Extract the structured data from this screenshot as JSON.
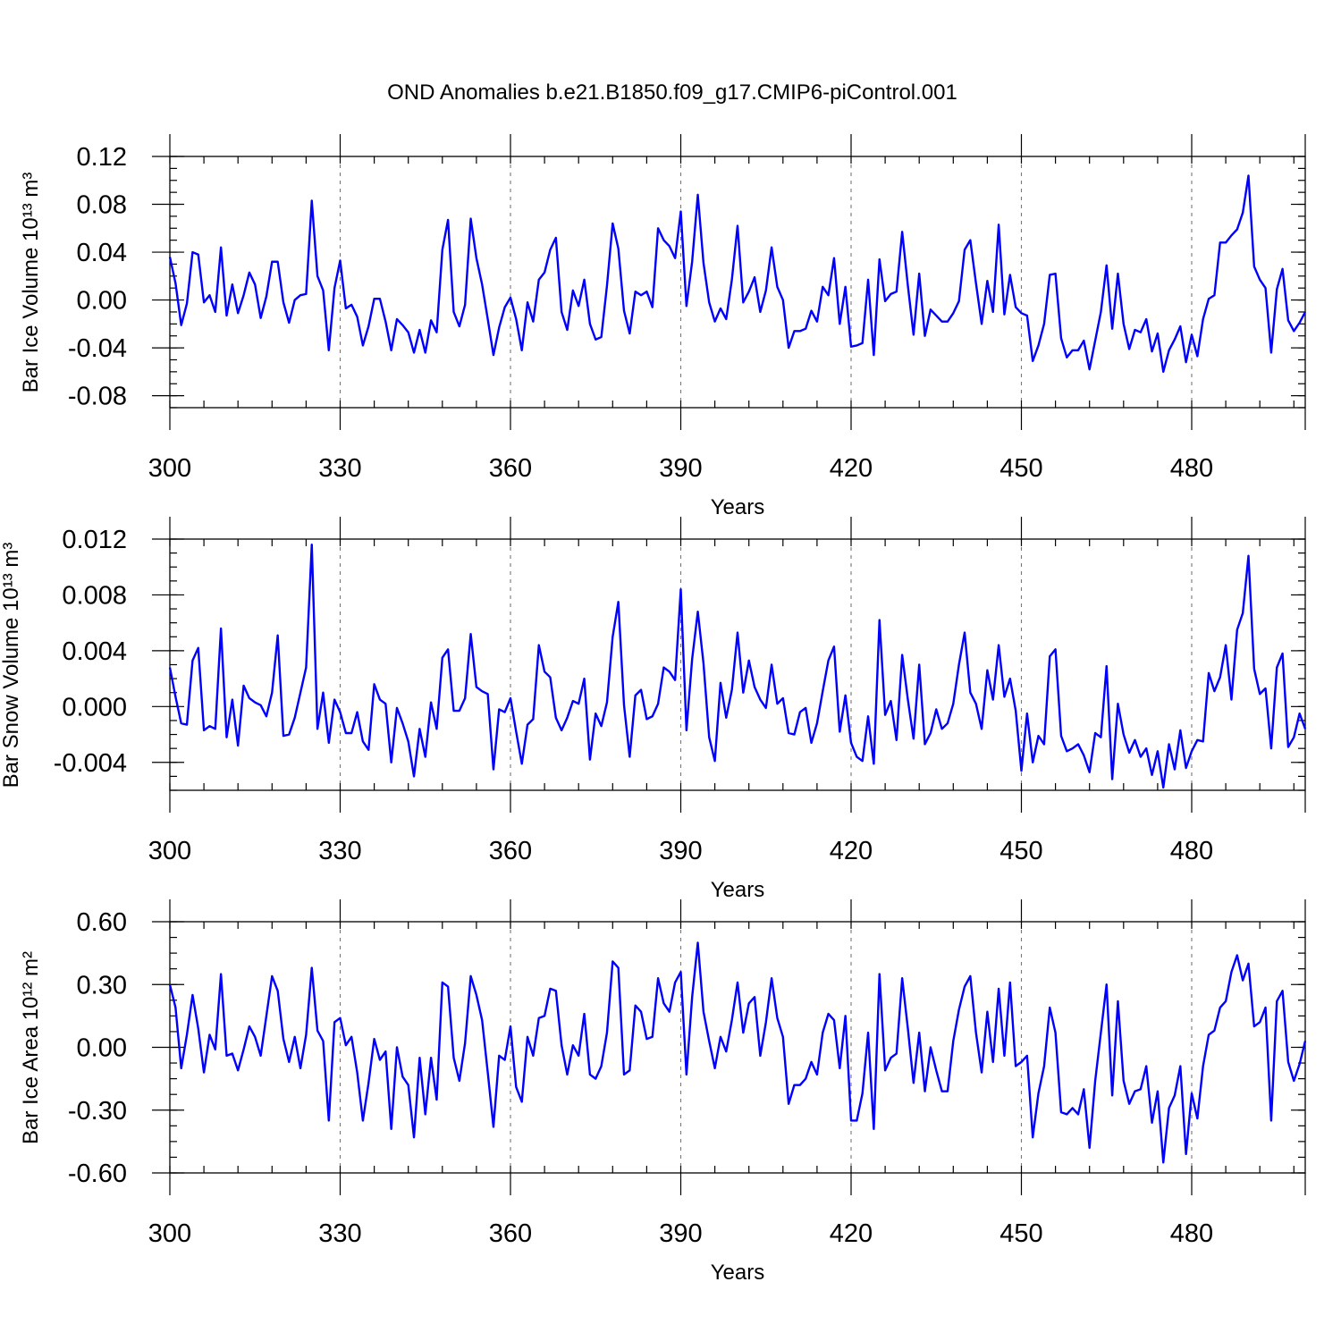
{
  "figure_title": "OND Anomalies b.e21.B1850.f09_g17.CMIP6-piControl.001",
  "chart_data": [
    {
      "type": "line",
      "title": "OND Anomalies b.e21.B1850.f09_g17.CMIP6-piControl.001",
      "xlabel": "Years",
      "ylabel": "Bar Ice Volume 10¹³ m³",
      "xlim": [
        300,
        500
      ],
      "ylim": [
        -0.09,
        0.12
      ],
      "xticks": [
        300,
        330,
        360,
        390,
        420,
        450,
        480
      ],
      "xtick_labels": [
        "300",
        "330",
        "360",
        "390",
        "420",
        "450",
        "480"
      ],
      "yticks": [
        -0.08,
        -0.04,
        0.0,
        0.04,
        0.08,
        0.12
      ],
      "ytick_labels": [
        "-0.08",
        "-0.04",
        "0.00",
        "0.04",
        "0.08",
        "0.12"
      ],
      "x_start": 300,
      "x_step": 1,
      "series": [
        {
          "name": "Bar Ice Volume",
          "color": "#0000ff",
          "values": [
            0.036,
            0.014,
            -0.021,
            -0.003,
            0.04,
            0.038,
            -0.002,
            0.004,
            -0.01,
            0.044,
            -0.013,
            0.013,
            -0.011,
            0.004,
            0.023,
            0.013,
            -0.015,
            0.003,
            0.032,
            0.032,
            -0.002,
            -0.019,
            0.0,
            0.004,
            0.005,
            0.083,
            0.02,
            0.008,
            -0.042,
            0.01,
            0.033,
            -0.007,
            -0.004,
            -0.014,
            -0.038,
            -0.022,
            0.001,
            0.001,
            -0.018,
            -0.042,
            -0.016,
            -0.021,
            -0.027,
            -0.044,
            -0.025,
            -0.044,
            -0.017,
            -0.027,
            0.042,
            0.067,
            -0.01,
            -0.022,
            -0.004,
            0.068,
            0.035,
            0.013,
            -0.016,
            -0.046,
            -0.023,
            -0.006,
            0.002,
            -0.016,
            -0.042,
            -0.002,
            -0.018,
            0.017,
            0.023,
            0.042,
            0.052,
            -0.01,
            -0.025,
            0.008,
            -0.005,
            0.017,
            -0.02,
            -0.033,
            -0.031,
            0.012,
            0.064,
            0.043,
            -0.009,
            -0.028,
            0.007,
            0.004,
            0.007,
            -0.006,
            0.06,
            0.05,
            0.045,
            0.035,
            0.074,
            -0.005,
            0.032,
            0.088,
            0.031,
            -0.002,
            -0.018,
            -0.007,
            -0.016,
            0.017,
            0.062,
            -0.002,
            0.007,
            0.019,
            -0.01,
            0.008,
            0.044,
            0.011,
            0.0,
            -0.04,
            -0.026,
            -0.026,
            -0.024,
            -0.009,
            -0.018,
            0.011,
            0.004,
            0.035,
            -0.02,
            0.011,
            -0.039,
            -0.038,
            -0.036,
            0.017,
            -0.046,
            0.034,
            -0.001,
            0.005,
            0.007,
            0.057,
            0.012,
            -0.029,
            0.022,
            -0.03,
            -0.008,
            -0.013,
            -0.018,
            -0.018,
            -0.011,
            -0.001,
            0.042,
            0.05,
            0.014,
            -0.02,
            0.016,
            -0.01,
            0.063,
            -0.012,
            0.021,
            -0.006,
            -0.011,
            -0.013,
            -0.051,
            -0.038,
            -0.02,
            0.021,
            0.022,
            -0.032,
            -0.048,
            -0.042,
            -0.042,
            -0.034,
            -0.058,
            -0.034,
            -0.01,
            0.029,
            -0.024,
            0.022,
            -0.02,
            -0.041,
            -0.025,
            -0.027,
            -0.016,
            -0.043,
            -0.028,
            -0.06,
            -0.042,
            -0.033,
            -0.022,
            -0.052,
            -0.029,
            -0.047,
            -0.016,
            0.001,
            0.004,
            0.048,
            0.048,
            0.054,
            0.059,
            0.073,
            0.104,
            0.028,
            0.017,
            0.01,
            -0.044,
            0.009,
            0.026,
            -0.017,
            -0.026,
            -0.019,
            -0.01
          ]
        }
      ]
    },
    {
      "type": "line",
      "xlabel": "Years",
      "ylabel": "Bar Snow Volume 10¹³ m³",
      "xlim": [
        300,
        500
      ],
      "ylim": [
        -0.006,
        0.012
      ],
      "xticks": [
        300,
        330,
        360,
        390,
        420,
        450,
        480
      ],
      "xtick_labels": [
        "300",
        "330",
        "360",
        "390",
        "420",
        "450",
        "480"
      ],
      "yticks": [
        -0.004,
        0.0,
        0.004,
        0.008,
        0.012
      ],
      "ytick_labels": [
        "-0.004",
        "0.000",
        "0.004",
        "0.008",
        "0.012"
      ],
      "x_start": 300,
      "x_step": 1,
      "series": [
        {
          "name": "Bar Snow Volume",
          "color": "#0000ff",
          "values": [
            0.0028,
            0.0007,
            -0.0012,
            -0.0013,
            0.0033,
            0.0042,
            -0.0017,
            -0.0014,
            -0.0016,
            0.0056,
            -0.0022,
            0.0005,
            -0.0028,
            0.0015,
            0.0006,
            0.0003,
            0.0001,
            -0.0007,
            0.001,
            0.0051,
            -0.0021,
            -0.002,
            -0.0008,
            0.001,
            0.0028,
            0.0116,
            -0.0016,
            0.001,
            -0.0026,
            0.0005,
            -0.0004,
            -0.0019,
            -0.0019,
            -0.0004,
            -0.0025,
            -0.0031,
            0.0016,
            0.0005,
            0.0002,
            -0.004,
            -0.0001,
            -0.0012,
            -0.0025,
            -0.005,
            -0.0016,
            -0.0036,
            0.0003,
            -0.0016,
            0.0035,
            0.0041,
            -0.0003,
            -0.0003,
            0.0006,
            0.0052,
            0.0014,
            0.0011,
            0.0009,
            -0.0045,
            -0.0002,
            -0.0004,
            0.0006,
            -0.0018,
            -0.0041,
            -0.0013,
            -0.0009,
            0.0044,
            0.0025,
            0.0021,
            -0.0008,
            -0.0017,
            -0.0008,
            0.0004,
            0.0002,
            0.002,
            -0.0038,
            -0.0005,
            -0.0014,
            0.0003,
            0.005,
            0.0075,
            0.0001,
            -0.0036,
            0.0008,
            0.0012,
            -0.0009,
            -0.0007,
            0.0002,
            0.0028,
            0.0025,
            0.0019,
            0.0084,
            -0.0017,
            0.0034,
            0.0068,
            0.0031,
            -0.0022,
            -0.0039,
            0.0017,
            -0.0008,
            0.0012,
            0.0053,
            0.001,
            0.0033,
            0.0014,
            0.0005,
            -0.0001,
            0.003,
            0.0002,
            0.0006,
            -0.0019,
            -0.002,
            -0.0004,
            -0.0001,
            -0.0026,
            -0.0012,
            0.0011,
            0.0033,
            0.0043,
            -0.0018,
            0.0008,
            -0.0026,
            -0.0036,
            -0.0039,
            -0.0007,
            -0.0041,
            0.0062,
            -0.0006,
            0.0004,
            -0.0024,
            0.0037,
            0.0005,
            -0.0023,
            0.003,
            -0.0027,
            -0.0019,
            -0.0002,
            -0.0016,
            -0.0012,
            0.0002,
            0.003,
            0.0053,
            0.001,
            0.0002,
            -0.0016,
            0.0026,
            0.0005,
            0.0044,
            0.0007,
            0.002,
            -0.0003,
            -0.0046,
            -0.0005,
            -0.004,
            -0.0021,
            -0.0027,
            0.0036,
            0.0041,
            -0.0021,
            -0.0032,
            -0.003,
            -0.0027,
            -0.0035,
            -0.0047,
            -0.0019,
            -0.0022,
            0.0029,
            -0.0052,
            0.0002,
            -0.002,
            -0.0033,
            -0.0024,
            -0.0036,
            -0.003,
            -0.0049,
            -0.0032,
            -0.0058,
            -0.0027,
            -0.0045,
            -0.0017,
            -0.0044,
            -0.0032,
            -0.0024,
            -0.0025,
            0.0024,
            0.0011,
            0.0021,
            0.0044,
            0.0005,
            0.0055,
            0.0067,
            0.0108,
            0.0027,
            0.0009,
            0.0013,
            -0.003,
            0.0028,
            0.0038,
            -0.0029,
            -0.0022,
            -0.0005,
            -0.0016
          ]
        }
      ]
    },
    {
      "type": "line",
      "xlabel": "Years",
      "ylabel": "Bar Ice Area 10¹² m²",
      "xlim": [
        300,
        500
      ],
      "ylim": [
        -0.6,
        0.6
      ],
      "xticks": [
        300,
        330,
        360,
        390,
        420,
        450,
        480
      ],
      "xtick_labels": [
        "300",
        "330",
        "360",
        "390",
        "420",
        "450",
        "480"
      ],
      "yticks": [
        -0.6,
        -0.3,
        0.0,
        0.3,
        0.6
      ],
      "ytick_labels": [
        "-0.60",
        "-0.30",
        "0.00",
        "0.30",
        "0.60"
      ],
      "x_start": 300,
      "x_step": 1,
      "series": [
        {
          "name": "Bar Ice Area",
          "color": "#0000ff",
          "values": [
            0.3,
            0.19,
            -0.1,
            0.06,
            0.25,
            0.09,
            -0.12,
            0.06,
            -0.01,
            0.35,
            -0.04,
            -0.03,
            -0.11,
            -0.01,
            0.1,
            0.05,
            -0.04,
            0.15,
            0.34,
            0.27,
            0.04,
            -0.07,
            0.05,
            -0.1,
            0.06,
            0.38,
            0.08,
            0.03,
            -0.35,
            0.12,
            0.14,
            0.01,
            0.05,
            -0.12,
            -0.35,
            -0.17,
            0.04,
            -0.06,
            -0.02,
            -0.39,
            0.0,
            -0.14,
            -0.18,
            -0.43,
            -0.05,
            -0.32,
            -0.05,
            -0.25,
            0.31,
            0.29,
            -0.05,
            -0.16,
            0.02,
            0.34,
            0.25,
            0.13,
            -0.12,
            -0.38,
            -0.04,
            -0.06,
            0.1,
            -0.19,
            -0.26,
            0.05,
            -0.04,
            0.14,
            0.15,
            0.28,
            0.27,
            0.01,
            -0.13,
            0.01,
            -0.04,
            0.16,
            -0.13,
            -0.15,
            -0.09,
            0.07,
            0.41,
            0.38,
            -0.13,
            -0.11,
            0.2,
            0.17,
            0.04,
            0.05,
            0.33,
            0.21,
            0.17,
            0.31,
            0.36,
            -0.13,
            0.24,
            0.5,
            0.17,
            0.03,
            -0.1,
            0.05,
            -0.02,
            0.13,
            0.31,
            0.07,
            0.21,
            0.24,
            -0.04,
            0.12,
            0.33,
            0.14,
            0.05,
            -0.27,
            -0.18,
            -0.18,
            -0.15,
            -0.07,
            -0.13,
            0.07,
            0.16,
            0.13,
            -0.1,
            0.15,
            -0.35,
            -0.35,
            -0.22,
            0.07,
            -0.39,
            0.35,
            -0.11,
            -0.05,
            -0.03,
            0.33,
            0.09,
            -0.17,
            0.07,
            -0.21,
            0.0,
            -0.11,
            -0.21,
            -0.21,
            0.03,
            0.18,
            0.29,
            0.34,
            0.07,
            -0.12,
            0.17,
            -0.07,
            0.28,
            -0.04,
            0.31,
            -0.09,
            -0.07,
            -0.04,
            -0.43,
            -0.22,
            -0.09,
            0.19,
            0.07,
            -0.31,
            -0.32,
            -0.29,
            -0.32,
            -0.2,
            -0.48,
            -0.16,
            0.07,
            0.3,
            -0.23,
            0.22,
            -0.16,
            -0.27,
            -0.21,
            -0.2,
            -0.09,
            -0.36,
            -0.21,
            -0.55,
            -0.29,
            -0.23,
            -0.09,
            -0.51,
            -0.22,
            -0.34,
            -0.09,
            0.06,
            0.08,
            0.19,
            0.22,
            0.36,
            0.44,
            0.32,
            0.4,
            0.1,
            0.12,
            0.19,
            -0.35,
            0.22,
            0.27,
            -0.07,
            -0.16,
            -0.08,
            0.03
          ]
        }
      ]
    }
  ]
}
